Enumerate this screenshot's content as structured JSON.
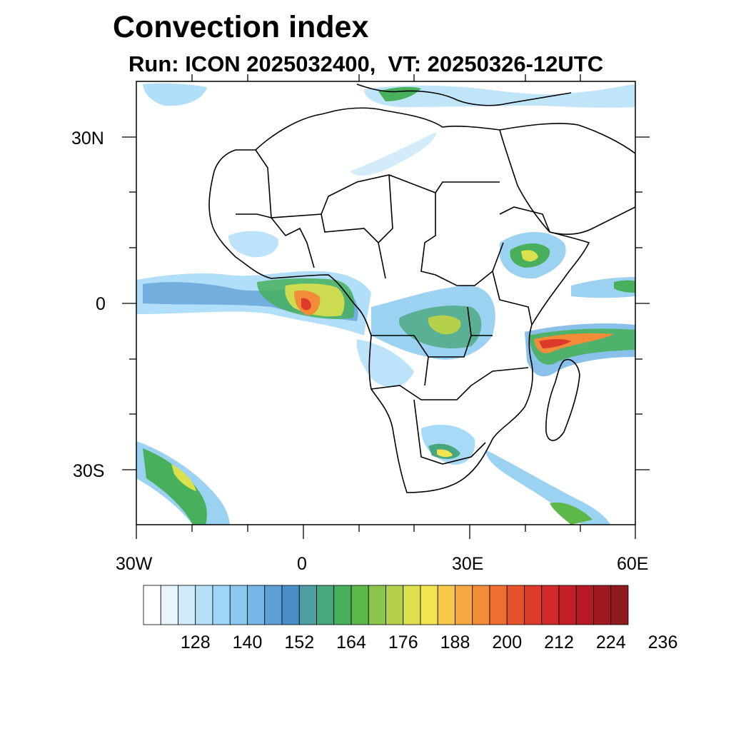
{
  "title": "Convection index",
  "subtitle": "Run: ICON 2025032400,  VT: 20250326-12UTC",
  "lat_labels": [
    "30N",
    "0",
    "30S"
  ],
  "lon_labels": [
    "30W",
    "0",
    "30E",
    "60E"
  ],
  "colorbar": {
    "tick_labels": [
      "128",
      "140",
      "152",
      "164",
      "176",
      "188",
      "200",
      "212",
      "224",
      "236"
    ],
    "colors": [
      "#ffffff",
      "#e8f5fd",
      "#cfeafa",
      "#b5e0f8",
      "#9dd6f6",
      "#8ac9ee",
      "#75b6e6",
      "#5e9fd6",
      "#4a8fca",
      "#4d9ea2",
      "#48a77e",
      "#48b05d",
      "#5db84a",
      "#8cc54e",
      "#b5d14c",
      "#dbe04c",
      "#f2e450",
      "#f7c84a",
      "#f6a840",
      "#f28c38",
      "#ee6e30",
      "#e5522b",
      "#dc3a2a",
      "#d12a2a",
      "#c41e28",
      "#b41a25",
      "#a21822",
      "#8e1a1e"
    ]
  },
  "map": {
    "extent": {
      "lon_min": -30,
      "lon_max": 60,
      "lat_min": -40,
      "lat_max": 40
    },
    "color_low": "#8ac9ee",
    "color_mid": "#48b05d",
    "color_high": "#f6a840",
    "color_peak": "#e5522b"
  }
}
